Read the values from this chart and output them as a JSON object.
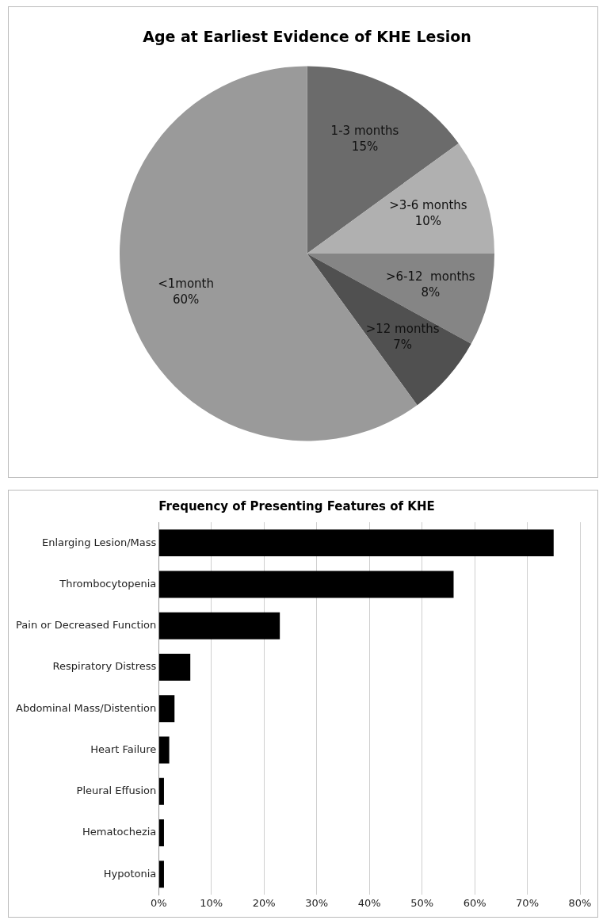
{
  "chart_data": [
    {
      "type": "pie",
      "title": "Age at Earliest Evidence of KHE Lesion",
      "categories": [
        "1-3 months",
        ">3-6 months",
        ">6-12  months",
        ">12 months",
        "<1month"
      ],
      "values": [
        15,
        10,
        8,
        7,
        60
      ],
      "colors": [
        "#6b6b6b",
        "#b0b0b0",
        "#858585",
        "#505050",
        "#9a9a9a"
      ],
      "value_labels": [
        "15%",
        "10%",
        "8%",
        "7%",
        "60%"
      ]
    },
    {
      "type": "bar",
      "orientation": "horizontal",
      "title": "Frequency of Presenting Features of KHE",
      "categories": [
        "Enlarging Lesion/Mass",
        "Thrombocytopenia",
        "Pain or Decreased Function",
        "Respiratory Distress",
        "Abdominal Mass/Distention",
        "Heart Failure",
        "Pleural Effusion",
        "Hematochezia",
        "Hypotonia"
      ],
      "values": [
        75,
        56,
        23,
        6,
        3,
        2,
        1,
        1,
        1
      ],
      "color": "#000000",
      "xlim": [
        0,
        80
      ],
      "xticks": [
        {
          "value": 0,
          "label": "0%"
        },
        {
          "value": 10,
          "label": "10%"
        },
        {
          "value": 20,
          "label": "20%"
        },
        {
          "value": 30,
          "label": "30%"
        },
        {
          "value": 40,
          "label": "40%"
        },
        {
          "value": 50,
          "label": "50%"
        },
        {
          "value": 60,
          "label": "60%"
        },
        {
          "value": 70,
          "label": "70%"
        },
        {
          "value": 80,
          "label": "80%"
        }
      ],
      "grid": "x"
    }
  ]
}
